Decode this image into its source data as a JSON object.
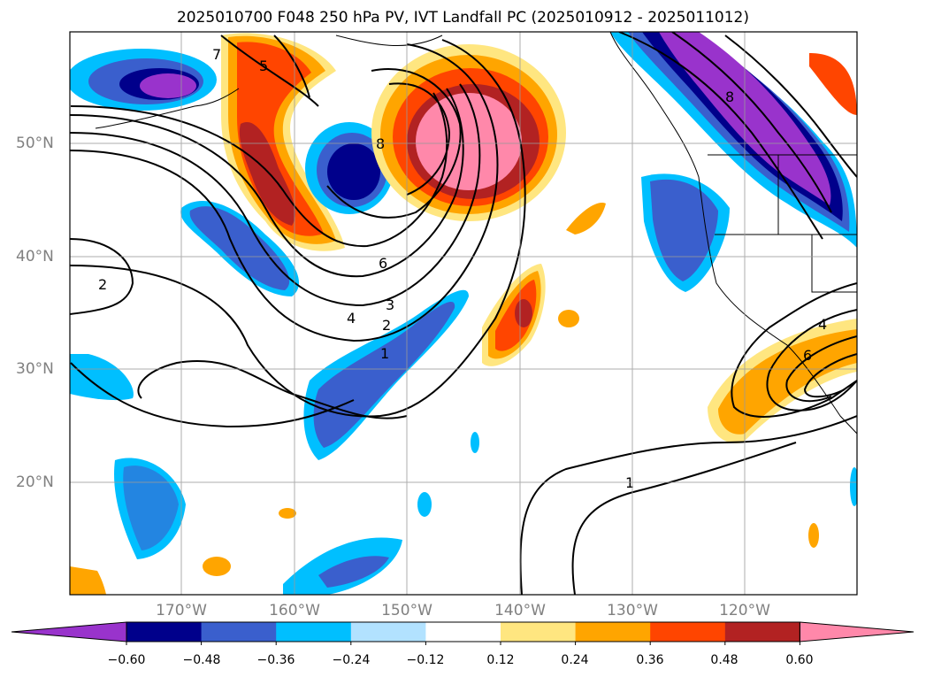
{
  "title": "2025010700 F048 250 hPa PV, IVT Landfall PC (2025010912 - 2025011012)",
  "map": {
    "lat_ticks": [
      "50°N",
      "40°N",
      "30°N",
      "20°N"
    ],
    "lon_ticks": [
      "170°W",
      "160°W",
      "150°W",
      "140°W",
      "130°W",
      "120°W"
    ],
    "contour_labels": [
      "1",
      "2",
      "3",
      "4",
      "5",
      "6",
      "7",
      "8",
      "1",
      "2",
      "4",
      "6",
      "8"
    ],
    "fill_colors": {
      "purple": "#9933cc",
      "navy": "#00008b",
      "royal": "#3a5fcd",
      "sky": "#00bfff",
      "lightblue": "#b2e2ff",
      "yellow": "#ffe680",
      "orange": "#ffa500",
      "redorange": "#ff4500",
      "firebrick": "#b22222",
      "pink": "#ff88aa"
    },
    "contour_color": "#000000"
  },
  "colorbar": {
    "tick_labels": [
      "−0.60",
      "−0.48",
      "−0.36",
      "−0.24",
      "−0.12",
      "0.12",
      "0.24",
      "0.36",
      "0.48",
      "0.60"
    ],
    "colors": [
      "#9933cc",
      "#00008b",
      "#3a5fcd",
      "#00bfff",
      "#b2e2ff",
      "#ffffff",
      "#ffe680",
      "#ffa500",
      "#ff4500",
      "#b22222",
      "#ff88aa"
    ]
  }
}
